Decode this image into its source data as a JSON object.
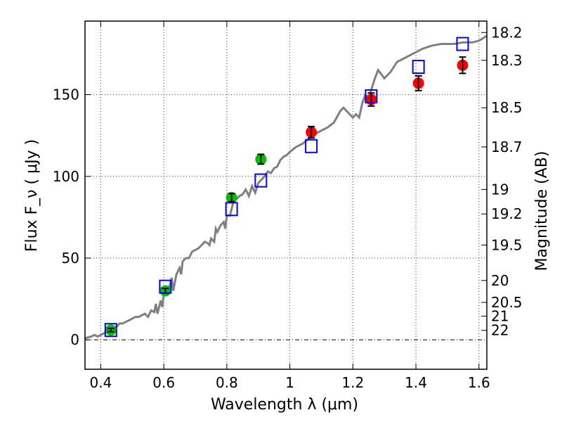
{
  "chart_data": {
    "type": "scatter",
    "xlabel": "Wavelength  λ (μm)",
    "ylabel": "Flux  F_ν  ( μJy )",
    "ylabel_right": "Magnitude (AB)",
    "xlim": [
      0.35,
      1.625
    ],
    "ylim": [
      -18,
      195
    ],
    "x_ticks": [
      0.4,
      0.6,
      0.8,
      1.0,
      1.2,
      1.4,
      1.6
    ],
    "x_tick_labels": [
      "0.4",
      "0.6",
      "0.8",
      "1",
      "1.2",
      "1.4",
      "1.6"
    ],
    "y_ticks": [
      0,
      50,
      100,
      150
    ],
    "y_tick_labels": [
      "0",
      "50",
      "100",
      "150"
    ],
    "right_ticks": [
      {
        "label": "18.2",
        "flux": 188
      },
      {
        "label": "18.3",
        "flux": 171
      },
      {
        "label": "18.5",
        "flux": 142
      },
      {
        "label": "18.7",
        "flux": 118
      },
      {
        "label": "19",
        "flux": 92
      },
      {
        "label": "19.2",
        "flux": 77
      },
      {
        "label": "19.5",
        "flux": 58
      },
      {
        "label": "20",
        "flux": 36.3
      },
      {
        "label": "20.5",
        "flux": 22.9
      },
      {
        "label": "21",
        "flux": 14.5
      },
      {
        "label": "22",
        "flux": 5.8
      }
    ],
    "grid": true,
    "model_curve": {
      "name": "SED model",
      "color": "#808080",
      "x": [
        0.35,
        0.37,
        0.38,
        0.39,
        0.4,
        0.41,
        0.42,
        0.43,
        0.44,
        0.45,
        0.46,
        0.47,
        0.48,
        0.49,
        0.5,
        0.51,
        0.52,
        0.53,
        0.54,
        0.55,
        0.56,
        0.57,
        0.575,
        0.58,
        0.59,
        0.595,
        0.6,
        0.61,
        0.62,
        0.625,
        0.63,
        0.64,
        0.65,
        0.655,
        0.66,
        0.67,
        0.68,
        0.69,
        0.7,
        0.71,
        0.72,
        0.73,
        0.74,
        0.745,
        0.75,
        0.76,
        0.765,
        0.77,
        0.78,
        0.79,
        0.795,
        0.8,
        0.81,
        0.82,
        0.83,
        0.84,
        0.85,
        0.86,
        0.87,
        0.88,
        0.89,
        0.9,
        0.91,
        0.92,
        0.93,
        0.94,
        0.95,
        0.96,
        0.97,
        0.98,
        0.99,
        1.0,
        1.02,
        1.04,
        1.06,
        1.08,
        1.1,
        1.12,
        1.14,
        1.16,
        1.17,
        1.18,
        1.19,
        1.2,
        1.21,
        1.22,
        1.23,
        1.24,
        1.25,
        1.27,
        1.28,
        1.3,
        1.32,
        1.34,
        1.36,
        1.38,
        1.4,
        1.42,
        1.45,
        1.48,
        1.5,
        1.52,
        1.55,
        1.58,
        1.6,
        1.625
      ],
      "y": [
        1,
        2,
        3,
        2,
        3,
        4,
        5,
        6,
        7,
        8,
        10,
        10,
        11,
        12,
        13,
        14,
        14,
        15,
        16,
        14,
        18,
        17,
        22,
        16,
        24,
        20,
        28,
        28,
        34,
        38,
        30,
        40,
        44,
        40,
        48,
        50,
        50,
        54,
        55,
        56,
        58,
        60,
        59,
        58,
        62,
        60,
        68,
        66,
        70,
        72,
        68,
        76,
        76,
        84,
        86,
        88,
        89,
        92,
        88,
        94,
        90,
        96,
        98,
        100,
        103,
        102,
        105,
        106,
        110,
        112,
        113,
        115,
        118,
        120,
        123,
        126,
        128,
        130,
        133,
        140,
        142,
        140,
        138,
        136,
        138,
        136,
        145,
        150,
        148,
        160,
        165,
        160,
        164,
        170,
        172,
        174,
        176,
        178,
        180,
        181,
        181,
        181,
        182,
        182,
        183,
        186
      ]
    },
    "series": [
      {
        "name": "green photometry",
        "color": "#00c000",
        "points": [
          {
            "x": 0.432,
            "y": 6,
            "err": 1
          },
          {
            "x": 0.605,
            "y": 30,
            "err": 1.5
          },
          {
            "x": 0.815,
            "y": 87,
            "err": 2.5
          },
          {
            "x": 0.908,
            "y": 110.5,
            "err": 3
          }
        ]
      },
      {
        "name": "red photometry",
        "color": "#ff0000",
        "points": [
          {
            "x": 1.068,
            "y": 127,
            "err": 3.5
          },
          {
            "x": 1.258,
            "y": 147,
            "err": 4
          },
          {
            "x": 1.408,
            "y": 157,
            "err": 4.5
          },
          {
            "x": 1.548,
            "y": 168,
            "err": 5
          }
        ]
      },
      {
        "name": "model synthetic photometry",
        "color": "#0000ff",
        "marker": "open-square",
        "points": [
          {
            "x": 0.432,
            "y": 6
          },
          {
            "x": 0.605,
            "y": 32.5
          },
          {
            "x": 0.815,
            "y": 80
          },
          {
            "x": 0.908,
            "y": 97.5
          },
          {
            "x": 1.068,
            "y": 118.5
          },
          {
            "x": 1.258,
            "y": 149
          },
          {
            "x": 1.408,
            "y": 167
          },
          {
            "x": 1.548,
            "y": 181
          }
        ]
      }
    ]
  }
}
